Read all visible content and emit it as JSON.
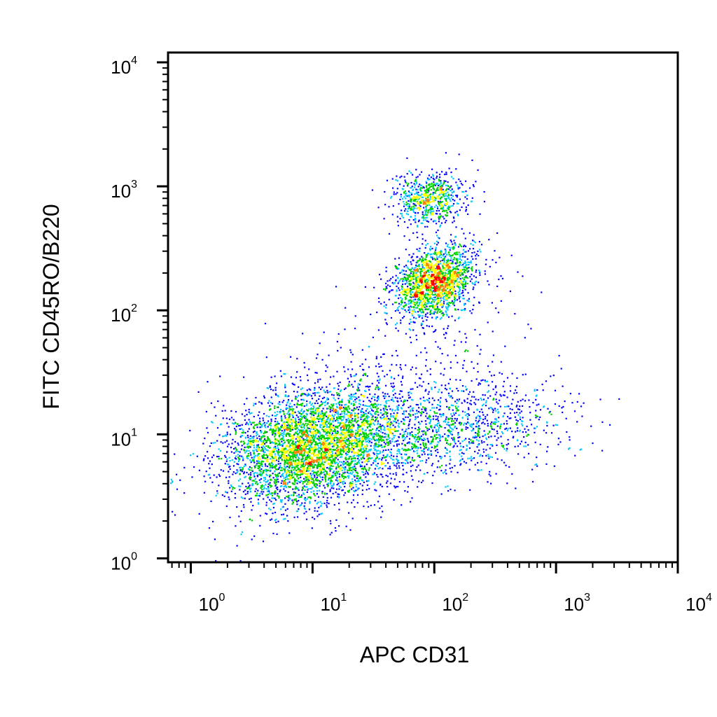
{
  "chart_data": {
    "type": "scatter",
    "style": "density-dot-plot",
    "xlabel": "APC CD31",
    "ylabel": "FITC CD45RO/B220",
    "xscale": "log",
    "yscale": "log",
    "xlim": [
      0.65,
      10000
    ],
    "ylim": [
      0.93,
      12000
    ],
    "x_ticks": [
      {
        "value": 1,
        "base": "10",
        "exp": "0"
      },
      {
        "value": 10,
        "base": "10",
        "exp": "1"
      },
      {
        "value": 100,
        "base": "10",
        "exp": "2"
      },
      {
        "value": 1000,
        "base": "10",
        "exp": "3"
      },
      {
        "value": 10000,
        "base": "10",
        "exp": "4"
      }
    ],
    "y_ticks": [
      {
        "value": 1,
        "base": "10",
        "exp": "0"
      },
      {
        "value": 10,
        "base": "10",
        "exp": "1"
      },
      {
        "value": 100,
        "base": "10",
        "exp": "2"
      },
      {
        "value": 1000,
        "base": "10",
        "exp": "3"
      },
      {
        "value": 10000,
        "base": "10",
        "exp": "4"
      }
    ],
    "grid": false,
    "density_colors": [
      "#0000ff",
      "#00c8ff",
      "#00d000",
      "#ffff00",
      "#ff8000",
      "#ff0000"
    ],
    "populations": [
      {
        "center": [
          10,
          8
        ],
        "spread": [
          0.36,
          0.24
        ],
        "count": 4200,
        "rho": 0.25
      },
      {
        "center": [
          100,
          170
        ],
        "spread": [
          0.17,
          0.15
        ],
        "count": 1800,
        "rho": 0.3
      },
      {
        "center": [
          90,
          800
        ],
        "spread": [
          0.15,
          0.11
        ],
        "count": 650,
        "rho": 0.1
      },
      {
        "center": [
          120,
          11
        ],
        "spread": [
          0.48,
          0.2
        ],
        "count": 1300,
        "rho": 0.2
      },
      {
        "center": [
          60,
          40
        ],
        "spread": [
          0.5,
          0.35
        ],
        "count": 200,
        "rho": 0.3
      }
    ]
  }
}
